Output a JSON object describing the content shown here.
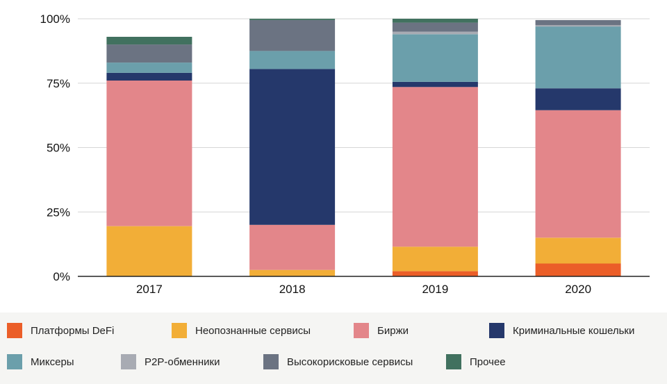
{
  "chart_data": {
    "type": "bar",
    "stacked": true,
    "percent": true,
    "categories": [
      "2017",
      "2018",
      "2019",
      "2020"
    ],
    "ylim": [
      0,
      100
    ],
    "yticks": [
      "0%",
      "25%",
      "50%",
      "75%",
      "100%"
    ],
    "grid": true,
    "legend_position": "bottom",
    "series": [
      {
        "name": "Платформы DeFi",
        "color": "#eb5e28",
        "values": [
          0,
          0,
          2,
          5
        ]
      },
      {
        "name": "Неопознанные сервисы",
        "color": "#f2ae37",
        "values": [
          19.5,
          2.5,
          9.5,
          10
        ]
      },
      {
        "name": "Биржи",
        "color": "#e3868a",
        "values": [
          56.5,
          17.5,
          62,
          49.5
        ]
      },
      {
        "name": "Криминальные кошельки",
        "color": "#25386b",
        "values": [
          3,
          60.5,
          2,
          8.5
        ]
      },
      {
        "name": "Миксеры",
        "color": "#6b9fab",
        "values": [
          4,
          7,
          18.5,
          24
        ]
      },
      {
        "name": "P2P-обменники",
        "color": "#a8abb3",
        "values": [
          0,
          0,
          1,
          0.5
        ]
      },
      {
        "name": "Высокорисковые сервисы",
        "color": "#6b7382",
        "values": [
          7,
          12,
          3.5,
          2
        ]
      },
      {
        "name": "Прочее",
        "color": "#41715f",
        "values": [
          3,
          0.5,
          1.5,
          0
        ]
      }
    ]
  }
}
